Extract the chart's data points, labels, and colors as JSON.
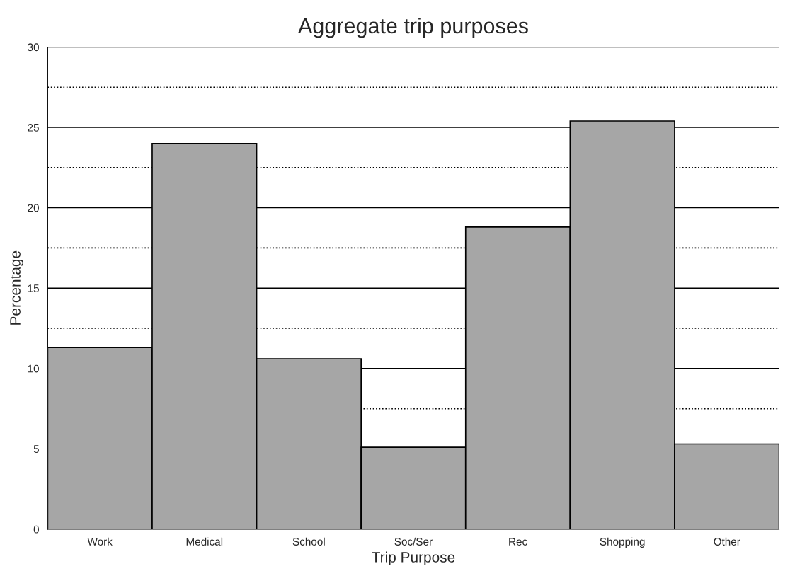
{
  "chart_data": {
    "type": "bar",
    "title": "Aggregate trip purposes",
    "xlabel": "Trip Purpose",
    "ylabel": "Percentage",
    "categories": [
      "Work",
      "Medical",
      "School",
      "Soc/Ser",
      "Rec",
      "Shopping",
      "Other"
    ],
    "values": [
      11.3,
      24.0,
      10.6,
      5.1,
      18.8,
      25.4,
      5.3
    ],
    "color": "#a6a6a6",
    "ylim": [
      0,
      30
    ],
    "yticks": [
      0,
      5,
      10,
      15,
      20,
      25,
      30
    ],
    "grid": "y"
  }
}
